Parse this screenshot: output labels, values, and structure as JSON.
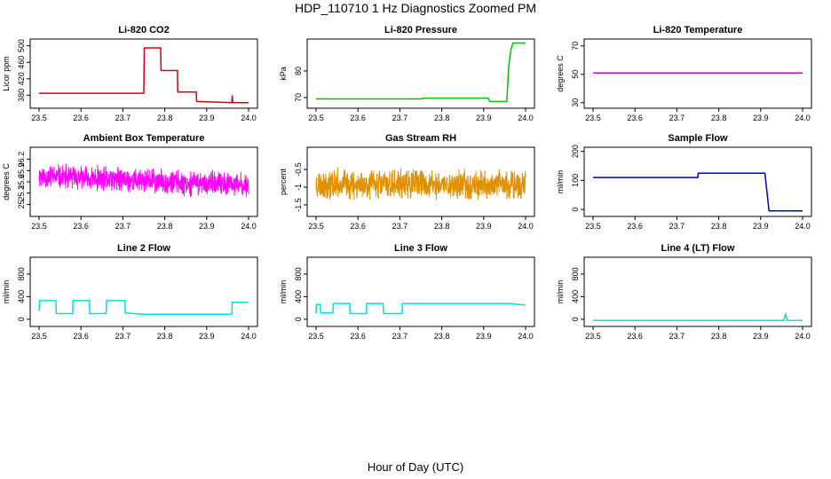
{
  "figure": {
    "title": "HDP_110710  1 Hz Diagnostics Zoomed PM",
    "xlabel": "Hour of Day (UTC)"
  },
  "chart_data": [
    {
      "type": "line",
      "title": "Li-820 CO2",
      "ylabel": "Licor ppm",
      "color": "#dd0000",
      "xlim": [
        23.5,
        24.0
      ],
      "ylim": [
        355,
        510
      ],
      "xticks": [
        "23.5",
        "23.6",
        "23.7",
        "23.8",
        "23.9",
        "24.0"
      ],
      "yticks": [
        380,
        420,
        460,
        500
      ],
      "series": [
        {
          "x": [
            23.5,
            23.75,
            23.751,
            23.79,
            23.791,
            23.83,
            23.831,
            23.875,
            23.876,
            23.96,
            23.961,
            23.962,
            24.0
          ],
          "y": [
            385,
            385,
            495,
            495,
            440,
            440,
            388,
            388,
            365,
            362,
            380,
            362,
            362
          ]
        }
      ]
    },
    {
      "type": "line",
      "title": "Li-820 Pressure",
      "ylabel": "kPa",
      "color": "#00c000",
      "xlim": [
        23.5,
        24.0
      ],
      "ylim": [
        67,
        91
      ],
      "xticks": [
        "23.5",
        "23.6",
        "23.7",
        "23.8",
        "23.9",
        "24.0"
      ],
      "yticks": [
        70,
        80
      ],
      "series": [
        {
          "x": [
            23.5,
            23.75,
            23.76,
            23.91,
            23.915,
            23.955,
            23.96,
            23.965,
            23.97,
            24.0
          ],
          "y": [
            69.5,
            69.5,
            69.8,
            69.8,
            68.5,
            68.5,
            82,
            88,
            90.5,
            90.5
          ]
        }
      ]
    },
    {
      "type": "line",
      "title": "Li-820 Temperature",
      "ylabel": "degrees C",
      "color": "#cc00cc",
      "xlim": [
        23.5,
        24.0
      ],
      "ylim": [
        28,
        73
      ],
      "xticks": [
        "23.5",
        "23.6",
        "23.7",
        "23.8",
        "23.9",
        "24.0"
      ],
      "yticks": [
        30,
        50,
        70
      ],
      "series": [
        {
          "x": [
            23.5,
            24.0
          ],
          "y": [
            51,
            51
          ]
        }
      ]
    },
    {
      "type": "line",
      "title": "Ambient Box Temperature",
      "ylabel": "degrees C",
      "color": "#ff00ff",
      "xlim": [
        23.5,
        24.0
      ],
      "ylim": [
        24.75,
        26.45
      ],
      "xticks": [
        "23.5",
        "23.6",
        "23.7",
        "23.8",
        "23.9",
        "24.0"
      ],
      "yticks": [
        25.0,
        25.3,
        25.6,
        25.9,
        26.2
      ],
      "noise": {
        "n": 900,
        "start": 25.75,
        "end": 25.5,
        "amp": 0.55,
        "seed": 11
      }
    },
    {
      "type": "line",
      "title": "Gas Stream RH",
      "ylabel": "percent",
      "color": "#e09000",
      "xlim": [
        23.5,
        24.0
      ],
      "ylim": [
        -1.75,
        0.05
      ],
      "xticks": [
        "23.5",
        "23.6",
        "23.7",
        "23.8",
        "23.9",
        "24.0"
      ],
      "yticks": [
        -1.5,
        -1.0,
        -0.5
      ],
      "noise": {
        "n": 900,
        "start": -0.9,
        "end": -0.95,
        "amp": 0.7,
        "seed": 23
      }
    },
    {
      "type": "line",
      "title": "Sample Flow",
      "ylabel": "ml/min",
      "color": "#0000cc",
      "xlim": [
        23.5,
        24.0
      ],
      "ylim": [
        -15,
        205
      ],
      "xticks": [
        "23.5",
        "23.6",
        "23.7",
        "23.8",
        "23.9",
        "24.0"
      ],
      "yticks": [
        0,
        100,
        200
      ],
      "series": [
        {
          "x": [
            23.5,
            23.62,
            23.75,
            23.751,
            23.91,
            23.915,
            23.92,
            24.0
          ],
          "y": [
            110,
            110,
            110,
            125,
            125,
            60,
            -5,
            -5
          ]
        }
      ]
    },
    {
      "type": "line",
      "title": "Line 2 Flow",
      "ylabel": "ml/min",
      "color": "#00e0e0",
      "xlim": [
        23.5,
        24.0
      ],
      "ylim": [
        -80,
        1050
      ],
      "xticks": [
        "23.5",
        "23.6",
        "23.7",
        "23.8",
        "23.9",
        "24.0"
      ],
      "yticks": [
        0,
        400,
        800
      ],
      "series": [
        {
          "x": [
            23.5,
            23.501,
            23.54,
            23.541,
            23.58,
            23.581,
            23.62,
            23.621,
            23.66,
            23.661,
            23.705,
            23.706,
            23.75,
            23.96,
            23.961,
            24.0
          ],
          "y": [
            150,
            330,
            330,
            100,
            100,
            330,
            330,
            100,
            100,
            330,
            330,
            110,
            90,
            90,
            300,
            300
          ]
        }
      ]
    },
    {
      "type": "line",
      "title": "Line 3 Flow",
      "ylabel": "ml/min",
      "color": "#00e0e0",
      "xlim": [
        23.5,
        24.0
      ],
      "ylim": [
        -80,
        1050
      ],
      "xticks": [
        "23.5",
        "23.6",
        "23.7",
        "23.8",
        "23.9",
        "24.0"
      ],
      "yticks": [
        0,
        400,
        800
      ],
      "series": [
        {
          "x": [
            23.5,
            23.501,
            23.51,
            23.511,
            23.54,
            23.541,
            23.58,
            23.581,
            23.62,
            23.621,
            23.66,
            23.661,
            23.705,
            23.706,
            23.96,
            24.0
          ],
          "y": [
            100,
            260,
            260,
            110,
            110,
            280,
            280,
            100,
            100,
            280,
            280,
            100,
            100,
            280,
            280,
            250
          ]
        }
      ]
    },
    {
      "type": "line",
      "title": "Line 4 (LT) Flow",
      "ylabel": "ml/min",
      "color": "#00e0e0",
      "xlim": [
        23.5,
        24.0
      ],
      "ylim": [
        -80,
        1050
      ],
      "xticks": [
        "23.5",
        "23.6",
        "23.7",
        "23.8",
        "23.9",
        "24.0"
      ],
      "yticks": [
        0,
        400,
        800
      ],
      "series": [
        {
          "x": [
            23.5,
            23.955,
            23.958,
            23.96,
            23.963,
            23.97,
            24.0
          ],
          "y": [
            -20,
            -20,
            60,
            90,
            -20,
            -20,
            -20
          ]
        }
      ]
    }
  ]
}
